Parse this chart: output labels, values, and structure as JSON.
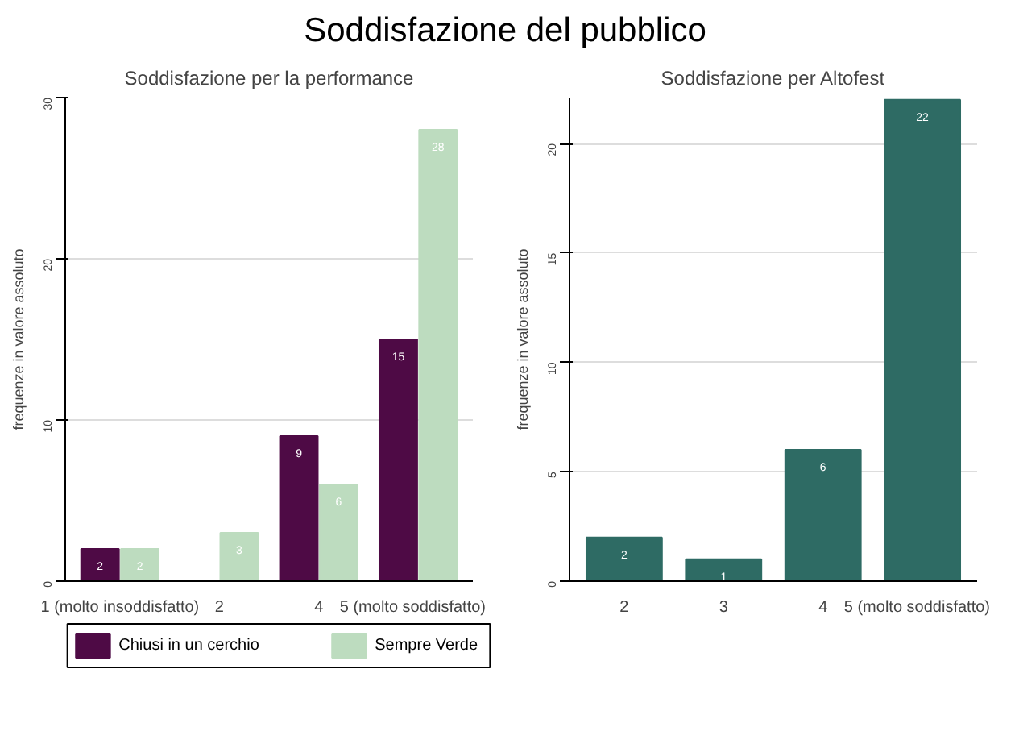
{
  "chart_data": [
    {
      "type": "other",
      "title": "Soddisfazione del pubblico"
    },
    {
      "type": "bar",
      "title": "Soddisfazione per la performance",
      "ylabel": "frequenze in valore assoluto",
      "categories": [
        "1 (molto insoddisfatto)",
        "2",
        "4",
        "5 (molto soddisfatto)"
      ],
      "series": [
        {
          "name": "Chiusi in un cerchio",
          "color": "#4e0a45",
          "values": [
            2,
            null,
            9,
            15
          ]
        },
        {
          "name": "Sempre Verde",
          "color": "#bddcbf",
          "values": [
            2,
            3,
            6,
            28
          ]
        }
      ],
      "ylim": [
        0,
        30
      ],
      "yticks": [
        0,
        10,
        20,
        30
      ],
      "grid": "y",
      "legend": "bottom",
      "data_labels": true
    },
    {
      "type": "bar",
      "title": "Soddisfazione per Altofest",
      "ylabel": "frequenze in valore assoluto",
      "categories": [
        "2",
        "3",
        "4",
        "5 (molto soddisfatto)"
      ],
      "series": [
        {
          "color": "#2e6b64",
          "values": [
            2,
            1,
            6,
            22
          ]
        }
      ],
      "ylim": [
        0,
        22.1
      ],
      "yticks": [
        0,
        5,
        10,
        15,
        20
      ],
      "grid": "y",
      "data_labels": true
    }
  ]
}
